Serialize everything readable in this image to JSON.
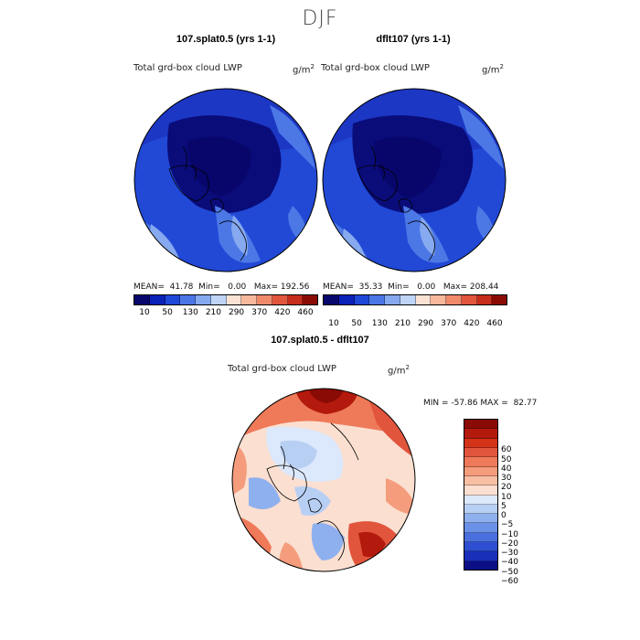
{
  "season": "DJF",
  "panels": [
    {
      "title": "107.splat0.5 (yrs 1-1)",
      "variable": "Total grd-box cloud LWP",
      "units": "g/m",
      "units_exp": "2",
      "mean_label": "MEAN=",
      "mean": "41.78",
      "min_label": "Min=",
      "min": "0.00",
      "max_label": "Max=",
      "max": "192.56"
    },
    {
      "title": "dflt107 (yrs 1-1)",
      "variable": "Total grd-box cloud LWP",
      "units": "g/m",
      "units_exp": "2",
      "mean_label": "MEAN=",
      "mean": "35.33",
      "min_label": "Min=",
      "min": "0.00",
      "max_label": "Max=",
      "max": "208.44"
    }
  ],
  "top_colorbar": {
    "colors": [
      "#08076b",
      "#0b21b8",
      "#1f48d8",
      "#4a76e6",
      "#86a9ef",
      "#bfd5f7",
      "#fbe3d4",
      "#f8b89c",
      "#f08a6a",
      "#e2553d",
      "#c72d1c",
      "#8a0b05"
    ],
    "labels": [
      "10",
      "50",
      "130",
      "210",
      "290",
      "370",
      "420",
      "460"
    ]
  },
  "diff": {
    "title": "107.splat0.5 - dflt107",
    "variable": "Total grd-box cloud LWP",
    "units": "g/m",
    "units_exp": "2",
    "min_label": "MIN =",
    "min": "-57.86",
    "max_label": "MAX =",
    "max": "82.77",
    "colors": [
      "#8a0b05",
      "#b3190c",
      "#d33317",
      "#e2553d",
      "#ee7a5a",
      "#f49c7c",
      "#f8bfa5",
      "#fbdfd0",
      "#dce8fb",
      "#b8cff4",
      "#8fb0ee",
      "#6a90e7",
      "#4a6fdf",
      "#2f4fd2",
      "#1a2fb9",
      "#0b0f86"
    ],
    "labels": [
      "60",
      "50",
      "40",
      "30",
      "20",
      "10",
      "5",
      "0",
      "−5",
      "−10",
      "−20",
      "−30",
      "−40",
      "−50",
      "−60"
    ]
  }
}
